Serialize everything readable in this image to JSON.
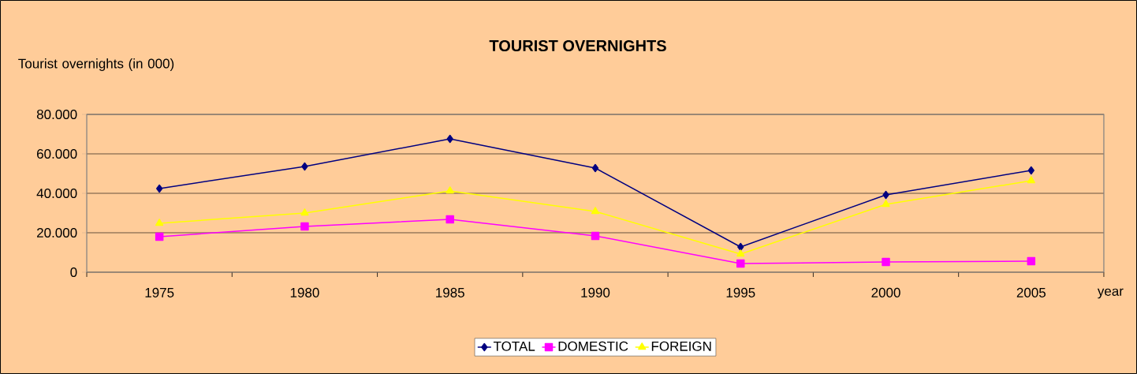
{
  "chart_data": {
    "type": "line",
    "title": "TOURIST OVERNIGHTS",
    "ylabel": "Tourist overnights (in 000)",
    "xlabel": "year",
    "categories": [
      "1975",
      "1980",
      "1985",
      "1990",
      "1995",
      "2000",
      "2005"
    ],
    "series": [
      {
        "name": "TOTAL",
        "color": "#000080",
        "marker": "diamond",
        "values": [
          42400,
          53600,
          67600,
          52800,
          12800,
          39200,
          51600
        ]
      },
      {
        "name": "DOMESTIC",
        "color": "#ff00ff",
        "marker": "square",
        "values": [
          18000,
          23200,
          26800,
          18400,
          4400,
          5200,
          5600
        ]
      },
      {
        "name": "FOREIGN",
        "color": "#ffff00",
        "marker": "triangle",
        "values": [
          24800,
          30000,
          41200,
          30800,
          9200,
          34400,
          46400
        ]
      }
    ],
    "ylim": [
      0,
      80000
    ],
    "yticks": [
      {
        "value": 0,
        "label": "0"
      },
      {
        "value": 20000,
        "label": "20.000"
      },
      {
        "value": 40000,
        "label": "40.000"
      },
      {
        "value": 60000,
        "label": "60.000"
      },
      {
        "value": 80000,
        "label": "80.000"
      }
    ],
    "grid": "y",
    "legend": "bottom",
    "line_style": "solid"
  }
}
